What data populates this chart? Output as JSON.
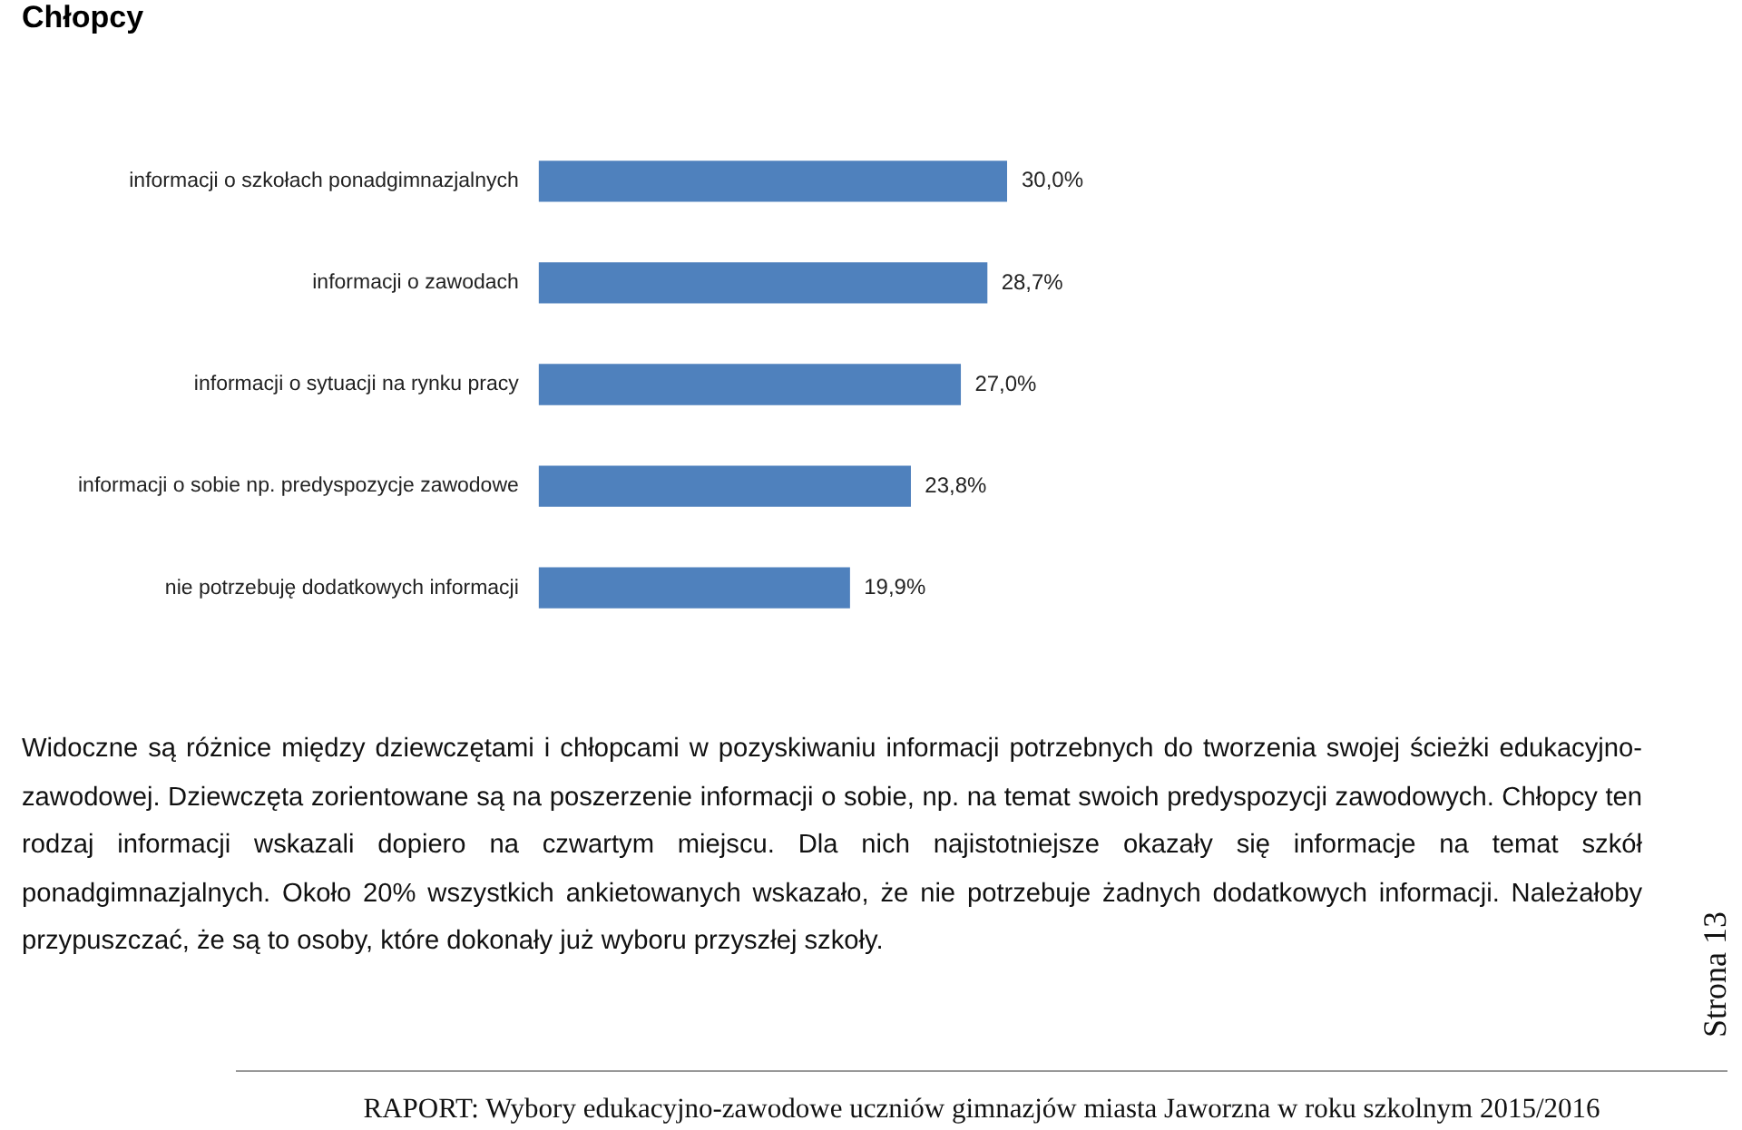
{
  "chart_data": {
    "type": "bar",
    "orientation": "horizontal",
    "title": "Chłopcy",
    "categories": [
      "informacji o szkołach ponadgimnazjalnych",
      "informacji o zawodach",
      "informacji o sytuacji na rynku pracy",
      "informacji o sobie np. predyspozycje zawodowe",
      "nie potrzebuję dodatkowych informacji"
    ],
    "values": [
      30.0,
      28.7,
      27.0,
      23.8,
      19.9
    ],
    "value_labels": [
      "30,0%",
      "28,7%",
      "27,0%",
      "23,8%",
      "19,9%"
    ],
    "color": "#4f81bd",
    "tick_labels": "y",
    "annotations": [
      "Widoczne są różnice między dziewczętami i chłopcami w pozyskiwaniu informacji potrzebnych do tworzenia swojej ścieżki edukacyjno-zawodowej. Dziewczęta zorientowane są na poszerzenie informacji o sobie, np. na temat swoich predyspozycji zawodowych. Chłopcy ten rodzaj informacji wskazali dopiero na czwartym miejscu. Dla nich najistotniejsze okazały się informacje na temat szkół ponadgimnazjalnych. Około 20% wszystkich ankietowanych wskazało, że nie potrzebuje żadnych dodatkowych informacji. Należałoby przypuszczać, że są to osoby, które dokonały już wyboru przyszłej szkoły.",
      "RAPORT: Wybory edukacyjno-zawodowe uczniów gimnazjów miasta Jaworzna w roku szkolnym 2015/2016",
      "Strona 13"
    ]
  }
}
